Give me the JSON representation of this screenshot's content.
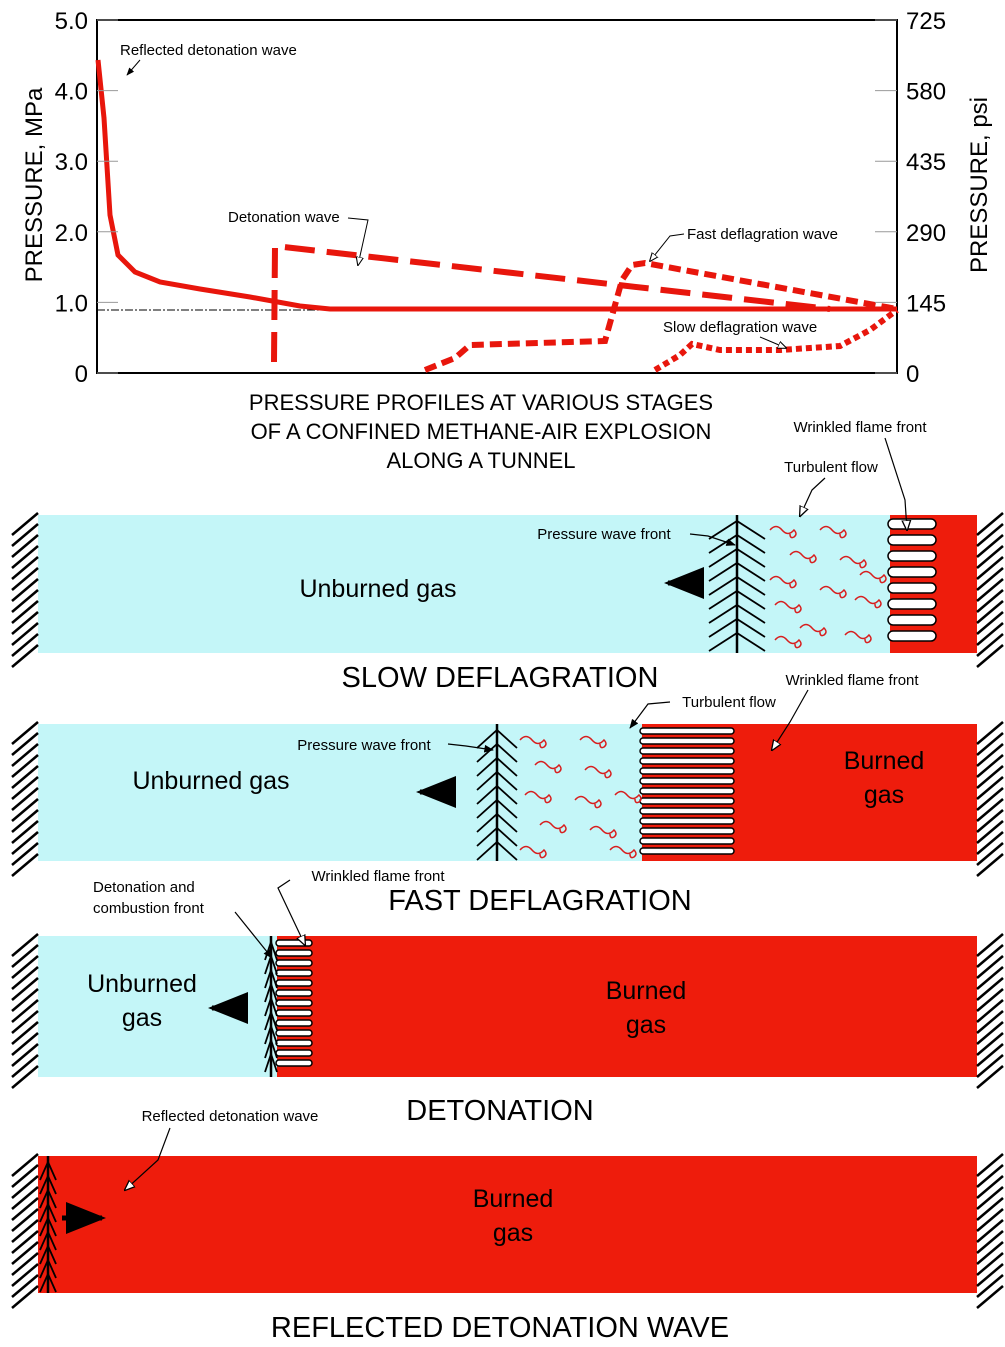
{
  "chart": {
    "ylim": [
      0,
      5
    ],
    "yticks": [
      0,
      {
        "value": 1,
        "label": "1.0"
      },
      {
        "value": 2,
        "label": "2.0"
      },
      {
        "value": 3,
        "label": "3.0"
      },
      {
        "value": 4,
        "label": "4.0"
      },
      {
        "value": 5,
        "label": "5.0"
      }
    ],
    "y2lim": [
      0,
      725
    ],
    "y2ticks": [
      0,
      145,
      290,
      435,
      580,
      725
    ],
    "y_label": "PRESSURE, MPa",
    "y2_label": "PRESSURE, psi",
    "annotations": [
      "Reflected detonation wave",
      "Detonation wave",
      "Fast deflagration wave",
      "Slow deflagration wave"
    ],
    "caption": [
      "PRESSURE PROFILES AT VARIOUS STAGES",
      "OF A CONFINED METHANE-AIR EXPLOSION",
      "ALONG A TUNNEL"
    ]
  },
  "panels": [
    {
      "title": "SLOW DEFLAGRATION",
      "unburned": [
        "Unburned gas"
      ],
      "labels": [
        "Pressure wave front",
        "Turbulent flow",
        "Wrinkled flame front"
      ]
    },
    {
      "title": "FAST DEFLAGRATION",
      "unburned": [
        "Unburned gas"
      ],
      "burned": [
        "Burned",
        "gas"
      ],
      "labels": [
        "Pressure wave front",
        "Turbulent flow",
        "Wrinkled flame front"
      ]
    },
    {
      "title": "DETONATION",
      "unburned": [
        "Unburned",
        "gas"
      ],
      "burned": [
        "Burned",
        "gas"
      ],
      "labels": [
        "Detonation and",
        "combustion front",
        "Wrinkled flame front"
      ]
    },
    {
      "title": "REFLECTED DETONATION WAVE",
      "burned": [
        "Burned",
        "gas"
      ],
      "labels": [
        "Reflected detonation wave"
      ]
    }
  ]
}
